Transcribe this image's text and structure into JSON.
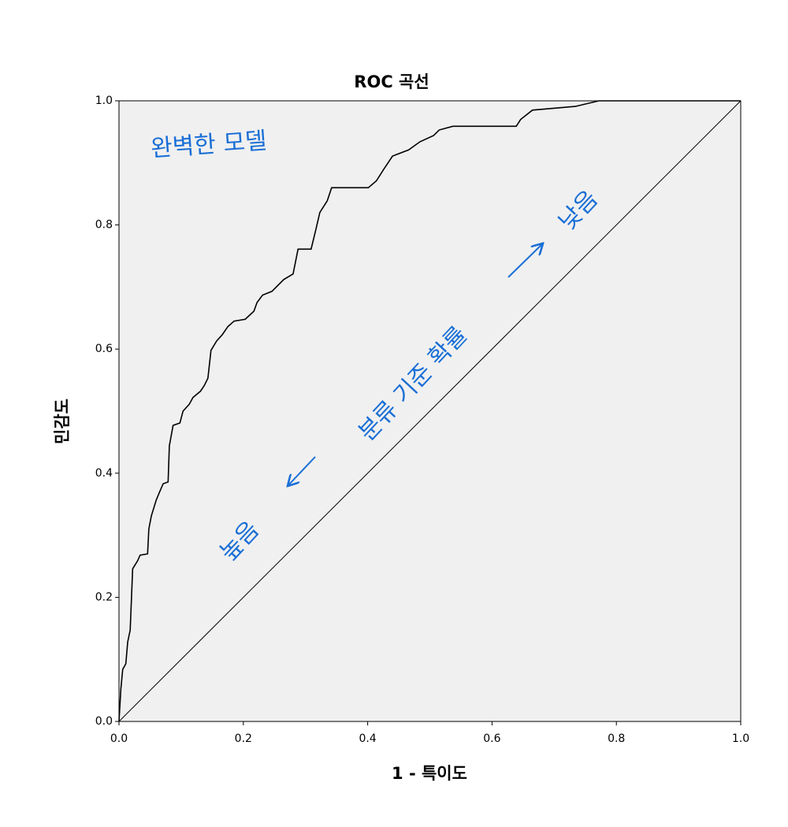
{
  "chart_data": {
    "type": "line",
    "title": "ROC 곡선",
    "x_label": "1 - 특이도",
    "y_label": "민감도",
    "annotations": [
      "완벽한 모델",
      "분류 기준 확률",
      "높음",
      "낮음"
    ],
    "x": [
      0,
      0.003,
      0.006,
      0.011,
      0.014,
      0.018,
      0.022,
      0.03,
      0.034,
      0.046,
      0.048,
      0.052,
      0.06,
      0.065,
      0.071,
      0.079,
      0.081,
      0.087,
      0.098,
      0.103,
      0.113,
      0.119,
      0.131,
      0.137,
      0.143,
      0.148,
      0.157,
      0.166,
      0.175,
      0.185,
      0.203,
      0.217,
      0.222,
      0.231,
      0.246,
      0.265,
      0.28,
      0.288,
      0.309,
      0.317,
      0.323,
      0.335,
      0.342,
      0.401,
      0.414,
      0.426,
      0.44,
      0.466,
      0.484,
      0.506,
      0.515,
      0.537,
      0.639,
      0.646,
      0.665,
      0.734,
      0.772,
      1.0
    ],
    "values": [
      0,
      0.052,
      0.084,
      0.093,
      0.128,
      0.147,
      0.246,
      0.259,
      0.268,
      0.27,
      0.31,
      0.331,
      0.357,
      0.369,
      0.383,
      0.386,
      0.444,
      0.477,
      0.481,
      0.5,
      0.511,
      0.522,
      0.532,
      0.541,
      0.553,
      0.598,
      0.613,
      0.623,
      0.636,
      0.645,
      0.648,
      0.661,
      0.675,
      0.687,
      0.693,
      0.712,
      0.721,
      0.761,
      0.761,
      0.794,
      0.82,
      0.839,
      0.86,
      0.86,
      0.871,
      0.89,
      0.911,
      0.921,
      0.934,
      0.944,
      0.953,
      0.959,
      0.959,
      0.97,
      0.985,
      0.991,
      1.0,
      1.0
    ],
    "color": "#000000",
    "diagonal": true,
    "xlim": [
      0,
      1
    ],
    "ylim": [
      0,
      1
    ],
    "xticks": [
      {
        "value": 0,
        "label": "0.0"
      },
      {
        "value": 0.2,
        "label": "0.2"
      },
      {
        "value": 0.4,
        "label": "0.4"
      },
      {
        "value": 0.6,
        "label": "0.6"
      },
      {
        "value": 0.8,
        "label": "0.8"
      },
      {
        "value": 1,
        "label": "1.0"
      }
    ],
    "yticks": [
      {
        "value": 0,
        "label": "0.0"
      },
      {
        "value": 0.2,
        "label": "0.2"
      },
      {
        "value": 0.4,
        "label": "0.4"
      },
      {
        "value": 0.6,
        "label": "0.6"
      },
      {
        "value": 0.8,
        "label": "0.8"
      },
      {
        "value": 1,
        "label": "1.0"
      }
    ]
  }
}
